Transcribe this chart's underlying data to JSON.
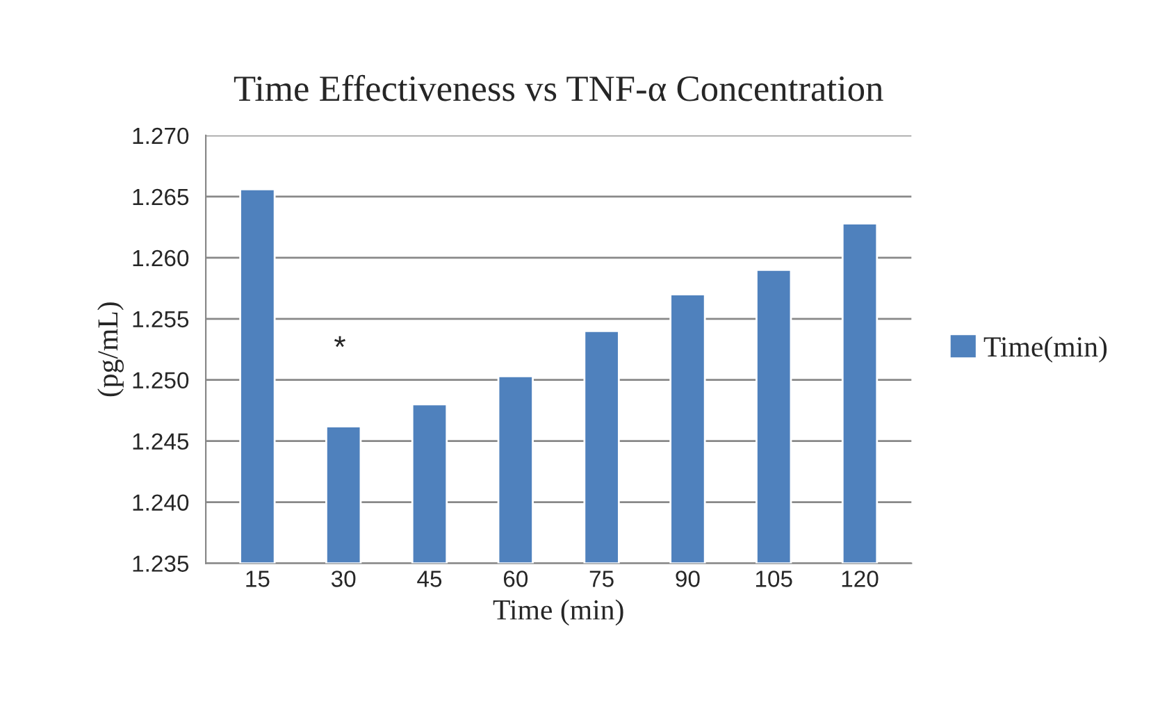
{
  "chart_data": {
    "type": "bar",
    "title": "Time Effectiveness vs TNF-α Concentration",
    "xlabel": "Time (min)",
    "ylabel": "(pg/mL)",
    "categories": [
      "15",
      "30",
      "45",
      "60",
      "75",
      "90",
      "105",
      "120"
    ],
    "series": [
      {
        "name": "Time(min)",
        "color": "#4f81bd",
        "values": [
          1.2656,
          1.2462,
          1.248,
          1.2503,
          1.254,
          1.257,
          1.259,
          1.2628
        ]
      }
    ],
    "ylim": [
      1.235,
      1.27
    ],
    "yticks": [
      {
        "value": 1.235,
        "label": "1.235"
      },
      {
        "value": 1.24,
        "label": "1.240"
      },
      {
        "value": 1.245,
        "label": "1.245"
      },
      {
        "value": 1.25,
        "label": "1.250"
      },
      {
        "value": 1.255,
        "label": "1.255"
      },
      {
        "value": 1.26,
        "label": "1.260"
      },
      {
        "value": 1.265,
        "label": "1.265"
      },
      {
        "value": 1.27,
        "label": "1.270"
      }
    ],
    "annotations": [
      "*"
    ],
    "grid": "y",
    "legend": "right"
  }
}
